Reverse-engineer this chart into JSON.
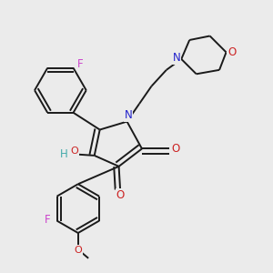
{
  "background_color": "#ebebeb",
  "bond_color": "#1a1a1a",
  "atom_colors": {
    "F": "#cc44cc",
    "N": "#2222cc",
    "O": "#cc2222",
    "H": "#44aaaa"
  },
  "figsize": [
    3.0,
    3.0
  ],
  "dpi": 100
}
